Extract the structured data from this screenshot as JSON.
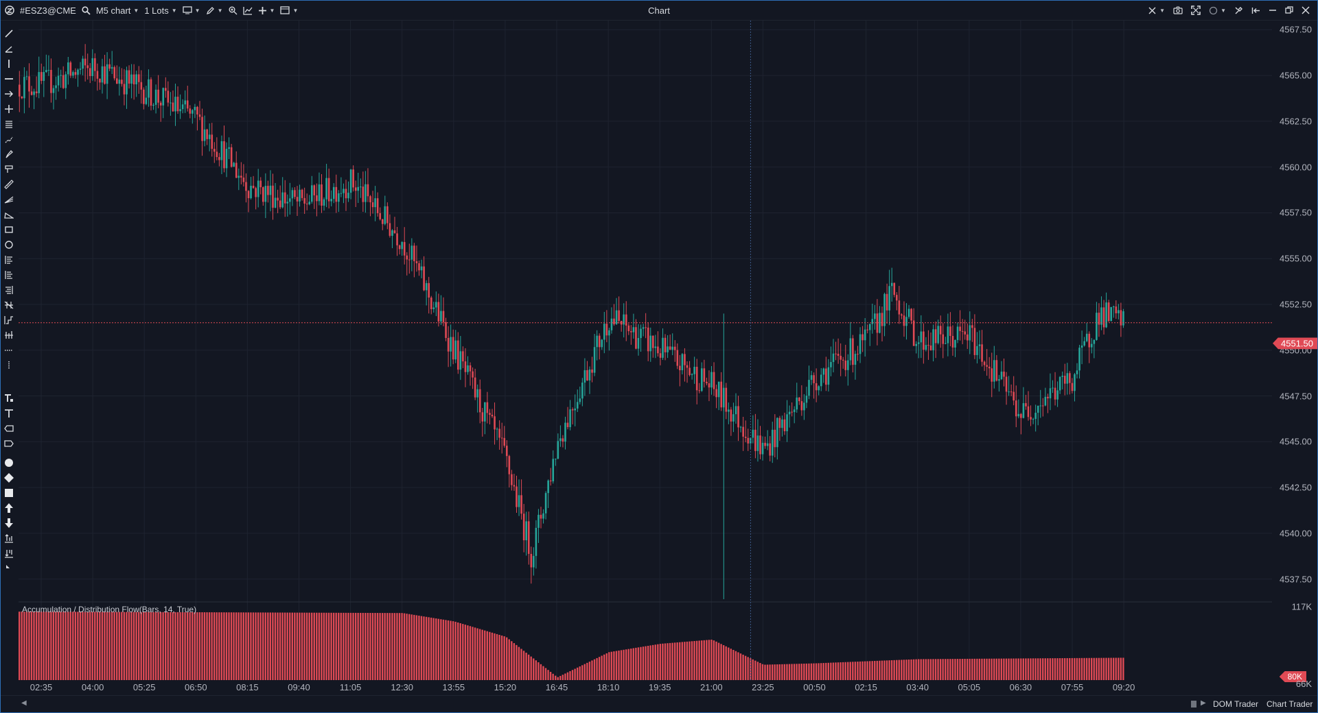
{
  "window": {
    "title": "Chart",
    "symbol": "#ESZ3@CME",
    "timeframe": "M5 chart",
    "lots": "1 Lots"
  },
  "price_axis": {
    "labels": [
      "4567.50",
      "4565.00",
      "4562.50",
      "4560.00",
      "4557.50",
      "4555.00",
      "4552.50",
      "4550.00",
      "4547.50",
      "4545.00",
      "4542.50",
      "4540.00",
      "4537.50"
    ],
    "current_price": "4551.50"
  },
  "indicator": {
    "label": "Accumulation / Distribution Flow(Bars, 14, True)",
    "axis_labels": [
      "117K",
      "66K"
    ],
    "current_value": "80K"
  },
  "time_axis": {
    "labels": [
      "02:35",
      "04:00",
      "05:25",
      "06:50",
      "08:15",
      "09:40",
      "11:05",
      "12:30",
      "13:55",
      "15:20",
      "16:45",
      "18:10",
      "19:35",
      "21:00",
      "23:25",
      "00:50",
      "02:15",
      "03:40",
      "05:05",
      "06:30",
      "07:55",
      "09:20"
    ]
  },
  "bottom_tabs": [
    "DOM Trader",
    "Chart Trader"
  ],
  "colors": {
    "background": "#131722",
    "up": "#26a69a",
    "down": "#e04a55",
    "grid": "#1e2330",
    "crosshair": "#3d5a8a",
    "price_line": "#e04a55"
  },
  "chart_data": {
    "type": "candlestick",
    "price_range": [
      4536.25,
      4568.0
    ],
    "key_prices": [
      {
        "time": "02:35",
        "price": 4564.5
      },
      {
        "time": "04:00",
        "price": 4565.5
      },
      {
        "time": "05:25",
        "price": 4564.2
      },
      {
        "time": "06:50",
        "price": 4562.6
      },
      {
        "time": "08:15",
        "price": 4559.0
      },
      {
        "time": "09:40",
        "price": 4558.0
      },
      {
        "time": "11:05",
        "price": 4559.2
      },
      {
        "time": "12:30",
        "price": 4556.0
      },
      {
        "time": "13:55",
        "price": 4550.0
      },
      {
        "time": "15:20",
        "price": 4544.0
      },
      {
        "time": "15:45",
        "price": 4538.8
      },
      {
        "time": "16:45",
        "price": 4545.0
      },
      {
        "time": "18:10",
        "price": 4551.8
      },
      {
        "time": "19:35",
        "price": 4550.0
      },
      {
        "time": "21:00",
        "price": 4548.0
      },
      {
        "time": "23:25",
        "price": 4544.5
      },
      {
        "time": "00:50",
        "price": 4548.5
      },
      {
        "time": "02:15",
        "price": 4550.5
      },
      {
        "time": "03:00",
        "price": 4553.2
      },
      {
        "time": "03:40",
        "price": 4550.5
      },
      {
        "time": "05:05",
        "price": 4550.8
      },
      {
        "time": "06:30",
        "price": 4546.5
      },
      {
        "time": "07:55",
        "price": 4548.5
      },
      {
        "time": "09:00",
        "price": 4552.0
      },
      {
        "time": "09:20",
        "price": 4551.5
      }
    ],
    "indicator_levels": [
      {
        "time": "02:35",
        "value": 113
      },
      {
        "time": "12:30",
        "value": 112
      },
      {
        "time": "13:55",
        "value": 106
      },
      {
        "time": "15:20",
        "value": 95
      },
      {
        "time": "16:45",
        "value": 66
      },
      {
        "time": "18:10",
        "value": 84
      },
      {
        "time": "19:35",
        "value": 90
      },
      {
        "time": "21:00",
        "value": 93
      },
      {
        "time": "23:25",
        "value": 75
      },
      {
        "time": "00:50",
        "value": 76
      },
      {
        "time": "03:40",
        "value": 79
      },
      {
        "time": "09:20",
        "value": 80
      }
    ]
  }
}
